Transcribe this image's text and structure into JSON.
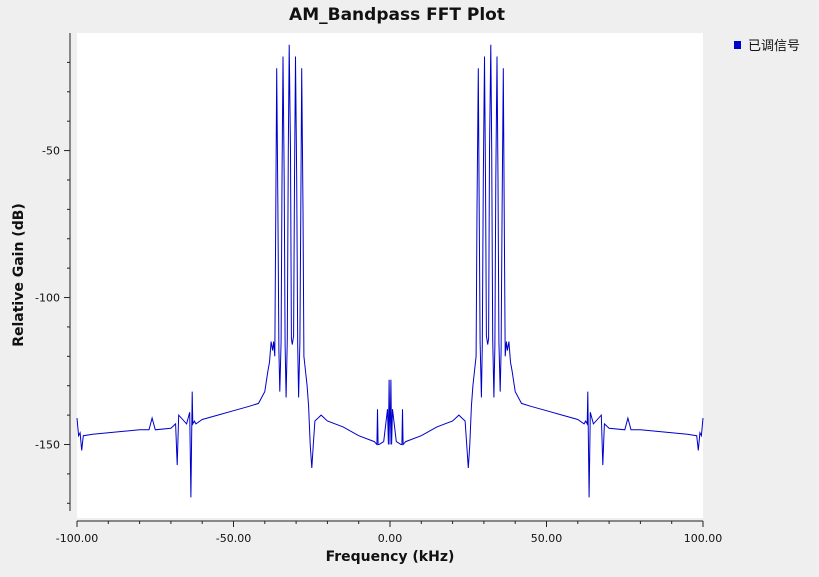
{
  "chart_data": {
    "type": "line",
    "title": "AM_Bandpass FFT Plot",
    "xlabel": "Frequency (kHz)",
    "ylabel": "Relative Gain (dB)",
    "xlim": [
      -100,
      100
    ],
    "ylim": [
      -175,
      -10
    ],
    "x_ticks": [
      -100,
      -50,
      0,
      50,
      100
    ],
    "x_tick_labels": [
      "-100.00",
      "-50.00",
      "0.00",
      "50.00",
      "100.00"
    ],
    "y_ticks": [
      -50,
      -100,
      -150
    ],
    "y_tick_labels": [
      "-50",
      "-100",
      "-150"
    ],
    "grid": false,
    "legend": {
      "position": "top-right"
    },
    "series": [
      {
        "name": "已调信号",
        "color": "#0000cc",
        "x": [
          -100,
          -99.5,
          -99,
          -98.5,
          -98,
          -95,
          -90,
          -85,
          -80,
          -77,
          -76,
          -75,
          -70,
          -68.5,
          -68,
          -67.5,
          -65,
          -64,
          -63.6,
          -63.2,
          -63,
          -62.5,
          -62,
          -60,
          -55,
          -50,
          -45,
          -42,
          -40,
          -39,
          -38.5,
          -38,
          -37.5,
          -37.2,
          -36.8,
          -36.5,
          -36.2,
          -35.8,
          -35.5,
          -35.2,
          -34.8,
          -34.5,
          -34.2,
          -33.8,
          -33.5,
          -33.2,
          -32.8,
          -32.5,
          -32.2,
          -31.8,
          -31.5,
          -31.2,
          -30.8,
          -30.5,
          -30.2,
          -29.8,
          -29.5,
          -29.2,
          -28.8,
          -28.5,
          -28.2,
          -27.8,
          -27.5,
          -27,
          -26.5,
          -26,
          -25.5,
          -25,
          -24.5,
          -24,
          -23,
          -22,
          -20,
          -15,
          -10,
          -5,
          -4.2,
          -4,
          -3.8,
          -3.5,
          -2,
          -0.8,
          -0.5,
          -0.3,
          0,
          0.3,
          0.5,
          0.8,
          2,
          3.5,
          3.8,
          4,
          4.2,
          5,
          10,
          15,
          20,
          22,
          23,
          24,
          24.5,
          25,
          25.5,
          26,
          26.5,
          27,
          27.5,
          27.8,
          28.2,
          28.5,
          28.8,
          29.2,
          29.5,
          29.8,
          30.2,
          30.5,
          30.8,
          31.2,
          31.5,
          31.8,
          32.2,
          32.5,
          32.8,
          33.2,
          33.5,
          33.8,
          34.2,
          34.5,
          34.8,
          35.2,
          35.5,
          35.8,
          36.2,
          36.5,
          36.8,
          37.2,
          37.5,
          38,
          38.5,
          39,
          40,
          42,
          45,
          50,
          55,
          60,
          62,
          62.5,
          63,
          63.2,
          63.6,
          64,
          65,
          67.5,
          68,
          68.5,
          70,
          75,
          76,
          77,
          80,
          85,
          90,
          95,
          98,
          98.5,
          99,
          99.5,
          100
        ],
        "y": [
          -141,
          -147,
          -146,
          -152,
          -147,
          -146.5,
          -146,
          -145.5,
          -145,
          -145,
          -141,
          -145,
          -144.5,
          -143,
          -157,
          -140,
          -143,
          -139,
          -168,
          -132,
          -143,
          -142,
          -143,
          -141.5,
          -140,
          -138.5,
          -137,
          -136,
          -132,
          -125,
          -122,
          -115,
          -118,
          -115,
          -120,
          -70,
          -22,
          -70,
          -118,
          -132,
          -115,
          -60,
          -18,
          -60,
          -116,
          -134,
          -114,
          -50,
          -14,
          -50,
          -114,
          -116,
          -113,
          -60,
          -18,
          -60,
          -116,
          -134,
          -115,
          -70,
          -22,
          -70,
          -120,
          -125,
          -130,
          -137,
          -150,
          -158,
          -150,
          -142,
          -141,
          -140,
          -142,
          -144,
          -147,
          -149,
          -150,
          -138,
          -150,
          -150,
          -149,
          -138,
          -150,
          -128,
          -150,
          -128,
          -150,
          -138,
          -149,
          -150,
          -150,
          -138,
          -150,
          -149,
          -147,
          -144,
          -142,
          -140,
          -141,
          -142,
          -150,
          -158,
          -150,
          -137,
          -130,
          -125,
          -120,
          -70,
          -22,
          -70,
          -115,
          -134,
          -116,
          -60,
          -18,
          -60,
          -113,
          -116,
          -114,
          -50,
          -14,
          -50,
          -114,
          -134,
          -116,
          -60,
          -18,
          -60,
          -115,
          -132,
          -118,
          -70,
          -22,
          -70,
          -120,
          -115,
          -118,
          -115,
          -122,
          -125,
          -132,
          -136,
          -137,
          -138.5,
          -140,
          -141.5,
          -143,
          -142,
          -143,
          -132,
          -168,
          -139,
          -143,
          -140,
          -157,
          -143,
          -144.5,
          -145,
          -141,
          -145,
          -145,
          -145.5,
          -146,
          -146.5,
          -147,
          -152,
          -146,
          -147,
          -141
        ]
      }
    ]
  }
}
